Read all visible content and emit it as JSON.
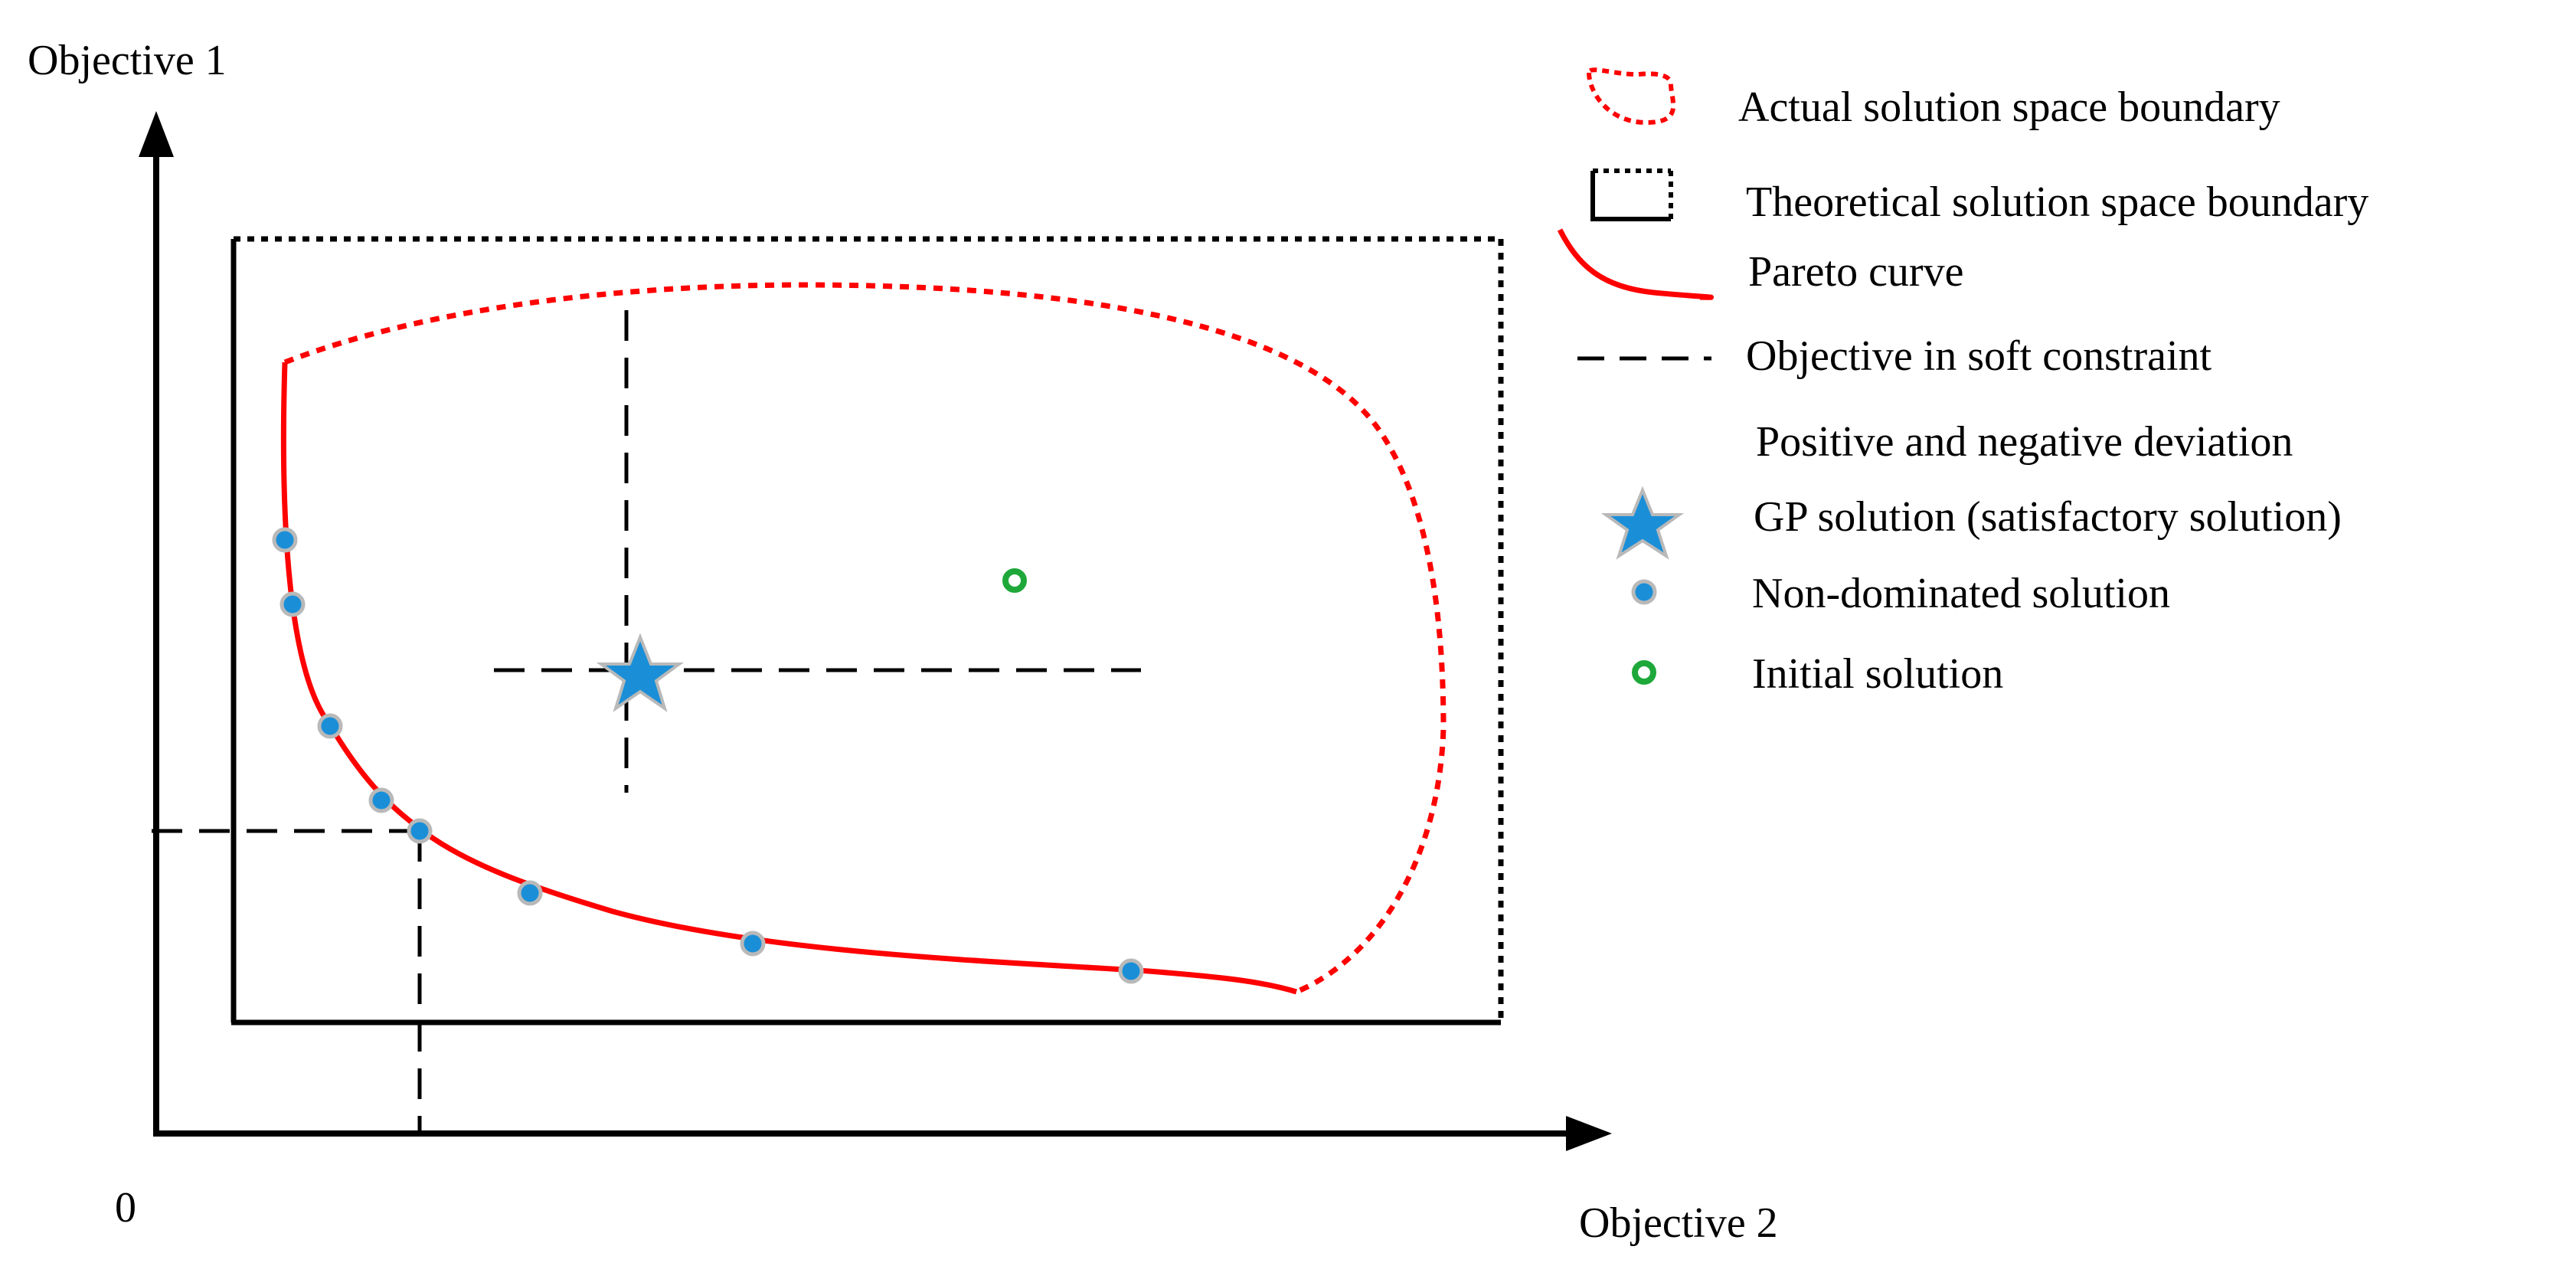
{
  "axes": {
    "y_label": "Objective 1",
    "x_label": "Objective 2",
    "origin_label": "0"
  },
  "legend": {
    "items": [
      {
        "label": "Actual solution space boundary",
        "icon": "red-dotted-loop-icon"
      },
      {
        "label": "Theoretical solution space boundary",
        "icon": "black-solid-dotted-rect-icon"
      },
      {
        "label": "Pareto curve",
        "icon": "red-curve-icon"
      },
      {
        "label": "Objective in soft constraint",
        "icon": "black-dashed-line-icon"
      },
      {
        "label": "Positive and negative deviation",
        "icon": "none"
      },
      {
        "label": "GP solution (satisfactory solution)",
        "icon": "blue-star-icon"
      },
      {
        "label": "Non-dominated solution",
        "icon": "blue-dot-icon"
      },
      {
        "label": "Initial solution",
        "icon": "green-ring-icon"
      }
    ]
  },
  "colors": {
    "boundary_red": "#ff0000",
    "point_blue": "#1a8fd8",
    "point_outline": "#b9b9b9",
    "initial_green": "#1fa83a",
    "axis_black": "#000000"
  }
}
